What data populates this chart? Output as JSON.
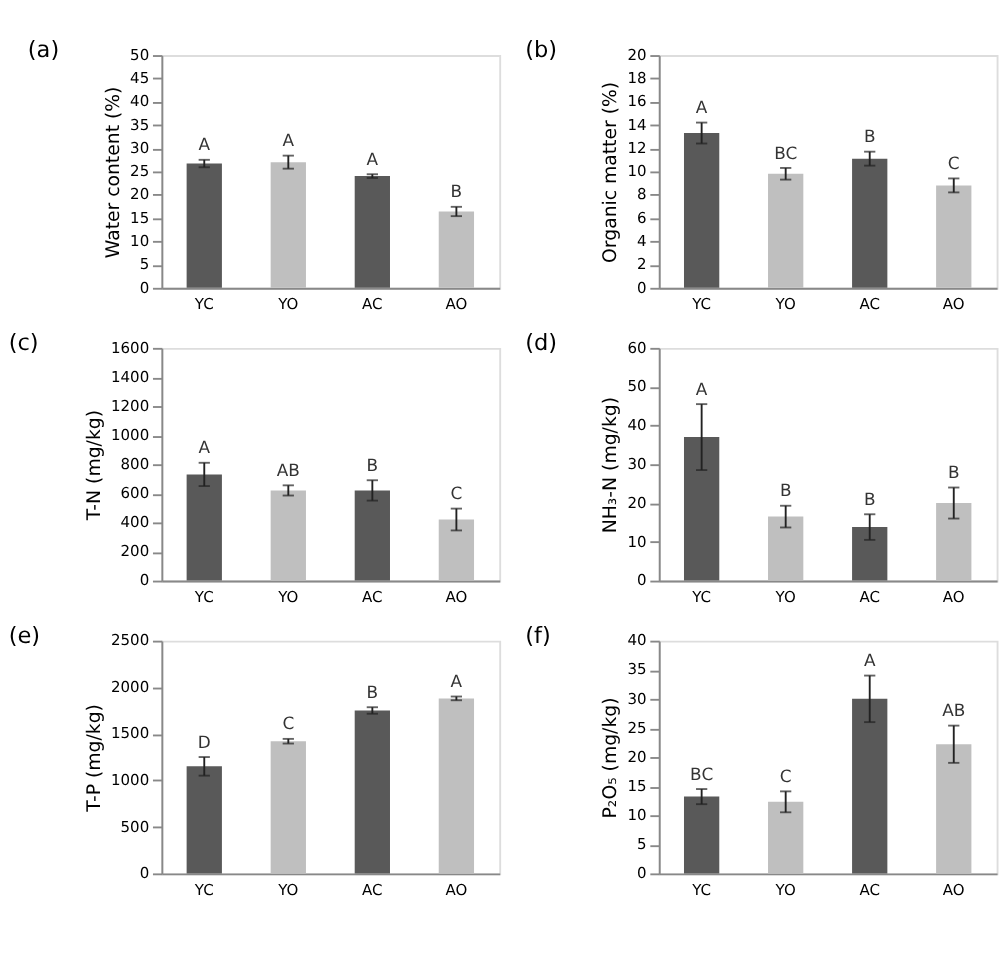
{
  "chart_data": [
    {
      "type": "bar",
      "title": "(a)",
      "ylabel": "Water content (%)",
      "categories": [
        "YC",
        "YO",
        "AC",
        "AO"
      ],
      "values": [
        26.7,
        27.0,
        24.0,
        16.4
      ],
      "errors": [
        0.8,
        1.4,
        0.4,
        1.0
      ],
      "colors": [
        "#595959",
        "#bfbfbf",
        "#595959",
        "#bfbfbf"
      ],
      "ylim": [
        0,
        50
      ],
      "yticks": [
        0,
        5,
        10,
        15,
        20,
        25,
        30,
        35,
        40,
        45,
        50
      ],
      "grid": false,
      "annotations": [
        "A",
        "A",
        "A",
        "B"
      ]
    },
    {
      "type": "bar",
      "title": "(b)",
      "ylabel": "Organic matter (%)",
      "categories": [
        "YC",
        "YO",
        "AC",
        "AO"
      ],
      "values": [
        13.3,
        9.8,
        11.1,
        8.8
      ],
      "errors": [
        0.9,
        0.5,
        0.6,
        0.6
      ],
      "colors": [
        "#595959",
        "#bfbfbf",
        "#595959",
        "#bfbfbf"
      ],
      "ylim": [
        0,
        20
      ],
      "yticks": [
        0,
        2,
        4,
        6,
        8,
        10,
        12,
        14,
        16,
        18,
        20
      ],
      "grid": false,
      "annotations": [
        "A",
        "BC",
        "B",
        "C"
      ]
    },
    {
      "type": "bar",
      "title": "(c)",
      "ylabel": "T-N (mg/kg)",
      "categories": [
        "YC",
        "YO",
        "AC",
        "AO"
      ],
      "values": [
        730,
        620,
        620,
        420
      ],
      "errors": [
        80,
        35,
        70,
        75
      ],
      "colors": [
        "#595959",
        "#bfbfbf",
        "#595959",
        "#bfbfbf"
      ],
      "ylim": [
        0,
        1600
      ],
      "yticks": [
        0,
        200,
        400,
        600,
        800,
        1000,
        1200,
        1400,
        1600
      ],
      "grid": false,
      "annotations": [
        "A",
        "AB",
        "B",
        "C"
      ]
    },
    {
      "type": "bar",
      "title": "(d)",
      "ylabel": "NH₃-N (mg/kg)",
      "categories": [
        "YC",
        "YO",
        "AC",
        "AO"
      ],
      "values": [
        37,
        16.5,
        13.8,
        20
      ],
      "errors": [
        8.5,
        2.8,
        3.3,
        4
      ],
      "colors": [
        "#595959",
        "#bfbfbf",
        "#595959",
        "#bfbfbf"
      ],
      "ylim": [
        0,
        60
      ],
      "yticks": [
        0,
        10,
        20,
        30,
        40,
        50,
        60
      ],
      "grid": false,
      "annotations": [
        "A",
        "B",
        "B",
        "B"
      ]
    },
    {
      "type": "bar",
      "title": "(e)",
      "ylabel": "T-P (mg/kg)",
      "categories": [
        "YC",
        "YO",
        "AC",
        "AO"
      ],
      "values": [
        1150,
        1420,
        1750,
        1880
      ],
      "errors": [
        100,
        25,
        35,
        20
      ],
      "colors": [
        "#595959",
        "#bfbfbf",
        "#595959",
        "#bfbfbf"
      ],
      "ylim": [
        0,
        2500
      ],
      "yticks": [
        0,
        500,
        1000,
        1500,
        2000,
        2500
      ],
      "grid": false,
      "annotations": [
        "D",
        "C",
        "B",
        "A"
      ]
    },
    {
      "type": "bar",
      "title": "(f)",
      "ylabel": "P₂O₅ (mg/kg)",
      "categories": [
        "YC",
        "YO",
        "AC",
        "AO"
      ],
      "values": [
        13.2,
        12.3,
        30,
        22.2
      ],
      "errors": [
        1.3,
        1.8,
        4,
        3.2
      ],
      "colors": [
        "#595959",
        "#bfbfbf",
        "#595959",
        "#bfbfbf"
      ],
      "ylim": [
        0,
        40
      ],
      "yticks": [
        0,
        5,
        10,
        15,
        20,
        25,
        30,
        35,
        40
      ],
      "grid": false,
      "annotations": [
        "BC",
        "C",
        "A",
        "AB"
      ]
    }
  ]
}
